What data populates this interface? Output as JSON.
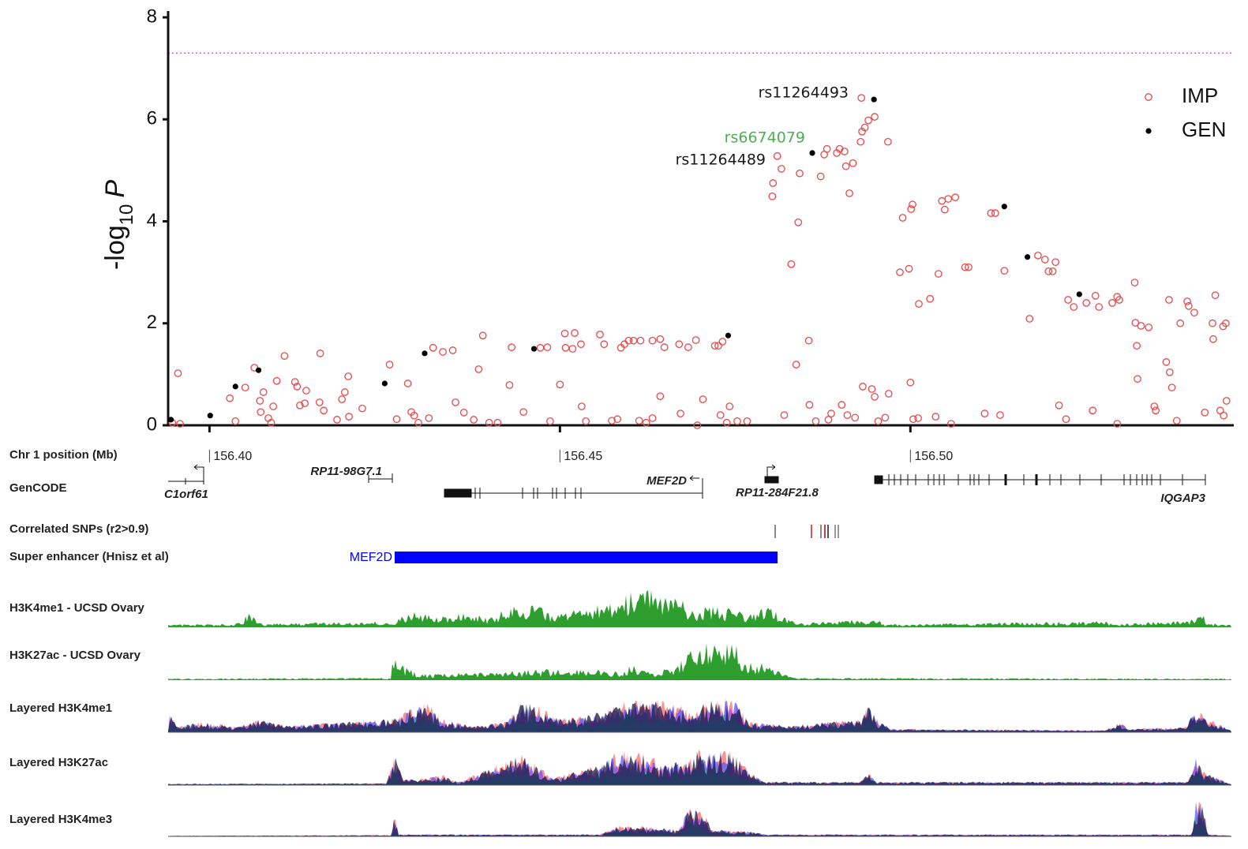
{
  "chart_data": {
    "type": "scatter",
    "y_label": {
      "text": "-log",
      "subscript": "10",
      "italic": "P"
    },
    "x_label": "Chr 1 position (Mb)",
    "xlim": [
      156.3941,
      156.5458
    ],
    "xticks": [
      {
        "value": 156.4,
        "label": "156.40"
      },
      156.45,
      {
        "value": 156.5,
        "label": "156.50"
      }
    ],
    "ylim": [
      0,
      8
    ],
    "yticks": [
      0,
      2,
      4,
      6,
      8
    ],
    "threshold": {
      "value": 7.3,
      "color": "#d25fd2"
    },
    "legend": "upper right",
    "series": [
      {
        "name": "IMP",
        "color": "#e8474a",
        "marker": "open",
        "x": [
          156.3955,
          156.3947,
          156.3958,
          156.4029,
          156.4037,
          156.4051,
          156.4064,
          156.4072,
          156.4073,
          156.4077,
          156.4084,
          156.4088,
          156.4091,
          156.4096,
          156.4107,
          156.4122,
          156.4125,
          156.4129,
          156.4136,
          156.4138,
          156.4158,
          156.4157,
          156.4163,
          156.4182,
          156.4189,
          156.4193,
          156.4198,
          156.4199,
          156.4218,
          156.4257,
          156.4267,
          156.4283,
          156.4288,
          156.4292,
          156.4298,
          156.4313,
          156.4319,
          156.4333,
          156.4347,
          156.4351,
          156.4363,
          156.4377,
          156.439,
          156.4384,
          156.4399,
          156.4411,
          156.4428,
          156.4431,
          156.4448,
          156.4472,
          156.4482,
          156.4486,
          156.45,
          156.4507,
          156.4508,
          156.4518,
          156.4521,
          156.453,
          156.4531,
          156.4537,
          156.4557,
          156.4563,
          156.4574,
          156.4582,
          156.4587,
          156.4592,
          156.4598,
          156.4605,
          156.4613,
          156.4615,
          156.4623,
          156.4632,
          156.4643,
          156.4632,
          156.4643,
          156.4649,
          156.467,
          156.4672,
          156.4683,
          156.4694,
          156.4696,
          156.4704,
          156.4721,
          156.4726,
          156.4732,
          156.4729,
          156.4738,
          156.4742,
          156.4753,
          156.4767,
          156.4803,
          156.4804,
          156.481,
          156.4816,
          156.482,
          156.483,
          156.4837,
          156.484,
          156.4842,
          156.4855,
          156.4856,
          156.4865,
          156.4872,
          156.4877,
          156.4881,
          156.4883,
          156.4887,
          156.4895,
          156.4899,
          156.4902,
          156.4906,
          156.4908,
          156.491,
          156.4913,
          156.4918,
          156.4921,
          156.4929,
          156.4931,
          156.493,
          156.4932,
          156.4935,
          156.494,
          156.4945,
          156.4949,
          156.4949,
          156.4954,
          156.4964,
          156.4968,
          156.4969,
          156.4985,
          156.4989,
          156.4998,
          156.5001,
          156.5003,
          156.5,
          156.5004,
          156.5012,
          156.5011,
          156.5028,
          156.5036,
          156.504,
          156.5045,
          156.5049,
          156.5054,
          156.5058,
          156.5064,
          156.5078,
          156.5083,
          156.5106,
          156.5115,
          156.5121,
          156.5128,
          156.5134,
          156.517,
          156.5182,
          156.5192,
          156.5197,
          156.5203,
          156.5207,
          156.5212,
          156.5222,
          156.5225,
          156.5233,
          156.5251,
          156.526,
          156.5264,
          156.5269,
          156.5288,
          156.5295,
          156.5295,
          156.5298,
          156.532,
          156.5321,
          156.5323,
          156.5324,
          156.5329,
          156.534,
          156.5348,
          156.535,
          156.5365,
          156.5369,
          156.537,
          156.5373,
          156.538,
          156.5385,
          156.5395,
          156.5397,
          156.5405,
          156.542,
          156.5431,
          156.5435,
          156.5432,
          156.5442,
          156.5446,
          156.5447,
          156.545,
          156.5451
        ],
        "values": [
          1.02,
          0.05,
          0.03,
          0.53,
          0.08,
          0.74,
          1.13,
          0.48,
          0.26,
          0.65,
          0.14,
          0.05,
          0.37,
          0.87,
          1.36,
          0.85,
          0.76,
          0.39,
          0.43,
          0.68,
          1.41,
          0.45,
          0.29,
          0.11,
          0.51,
          0.65,
          0.96,
          0.17,
          0.33,
          1.19,
          0.12,
          0.82,
          0.26,
          0.19,
          0.05,
          0.14,
          1.52,
          1.44,
          1.47,
          0.45,
          0.25,
          0.11,
          1.76,
          1.1,
          0.05,
          0.05,
          0.79,
          1.53,
          0.26,
          1.52,
          1.53,
          0.08,
          0.8,
          1.8,
          1.52,
          1.5,
          1.81,
          1.59,
          0.37,
          0.08,
          1.78,
          1.59,
          0.09,
          0.12,
          1.52,
          1.59,
          1.66,
          1.66,
          0.09,
          1.66,
          0.05,
          1.66,
          1.69,
          0.14,
          0.57,
          1.53,
          1.59,
          0.23,
          1.53,
          1.67,
          0.0,
          0.51,
          1.56,
          1.56,
          1.64,
          0.2,
          0.05,
          0.37,
          0.08,
          0.08,
          4.49,
          4.75,
          5.28,
          5.03,
          0.2,
          3.16,
          1.19,
          3.98,
          4.94,
          1.66,
          0.4,
          0.08,
          4.88,
          5.31,
          5.42,
          0.11,
          0.23,
          5.34,
          5.42,
          0.4,
          5.37,
          5.08,
          0.2,
          4.55,
          5.14,
          0.15,
          5.56,
          5.76,
          6.42,
          0.76,
          5.84,
          5.98,
          0.71,
          0.56,
          6.05,
          0.08,
          0.15,
          5.56,
          0.62,
          3.0,
          4.07,
          3.07,
          4.24,
          4.33,
          0.84,
          0.12,
          2.38,
          0.14,
          2.48,
          0.17,
          2.97,
          4.4,
          4.23,
          4.44,
          0.03,
          4.47,
          3.1,
          3.1,
          0.23,
          4.16,
          4.16,
          0.2,
          3.03,
          2.09,
          3.33,
          3.25,
          3.02,
          3.02,
          3.2,
          0.39,
          0.12,
          2.46,
          2.32,
          2.4,
          0.29,
          2.54,
          2.32,
          2.4,
          0.03,
          2.52,
          2.46,
          2.8,
          2.01,
          1.56,
          0.91,
          1.95,
          1.92,
          0.37,
          0.29,
          1.24,
          2.46,
          1.04,
          0.74,
          0.09,
          2.0,
          2.43,
          2.34,
          2.21,
          0.25,
          2.0,
          2.55,
          1.69,
          0.29,
          1.94,
          0.19,
          2.0,
          0.48
        ]
      },
      {
        "name": "GEN",
        "color": "#000000",
        "marker": "filled",
        "x": [
          156.3945,
          156.4001,
          156.4037,
          156.407,
          156.425,
          156.4307,
          156.4463,
          156.474,
          156.486,
          156.4948,
          156.5134,
          156.5167,
          156.5241
        ],
        "values": [
          0.11,
          0.19,
          0.76,
          1.08,
          0.82,
          1.41,
          1.5,
          1.76,
          5.34,
          6.39,
          4.29,
          3.3,
          2.57
        ]
      }
    ],
    "annotations": [
      {
        "text": "rs11264493",
        "color": "#1a1a1a"
      },
      {
        "text": "rs6674079",
        "color": "#4caf50"
      },
      {
        "text": "rs11264489",
        "color": "#1a1a1a"
      }
    ],
    "tracks": {
      "gencode": "GenCODE",
      "genes": [
        "C1orf61",
        "RP11-98G7.1",
        "MEF2D",
        "RP11-284F21.8",
        "IQGAP3"
      ],
      "correlated_snps": "Correlated SNPs (r2>0.9)",
      "super_enhancer": {
        "label": "Super enhancer (Hnisz et al)",
        "name": "MEF2D",
        "color": "#0000ff"
      },
      "signals": [
        "H3K4me1 - UCSD Ovary",
        "H3K27ac - UCSD Ovary",
        "Layered H3K4me1",
        "Layered H3K27ac",
        "Layered H3K4me3"
      ]
    }
  }
}
